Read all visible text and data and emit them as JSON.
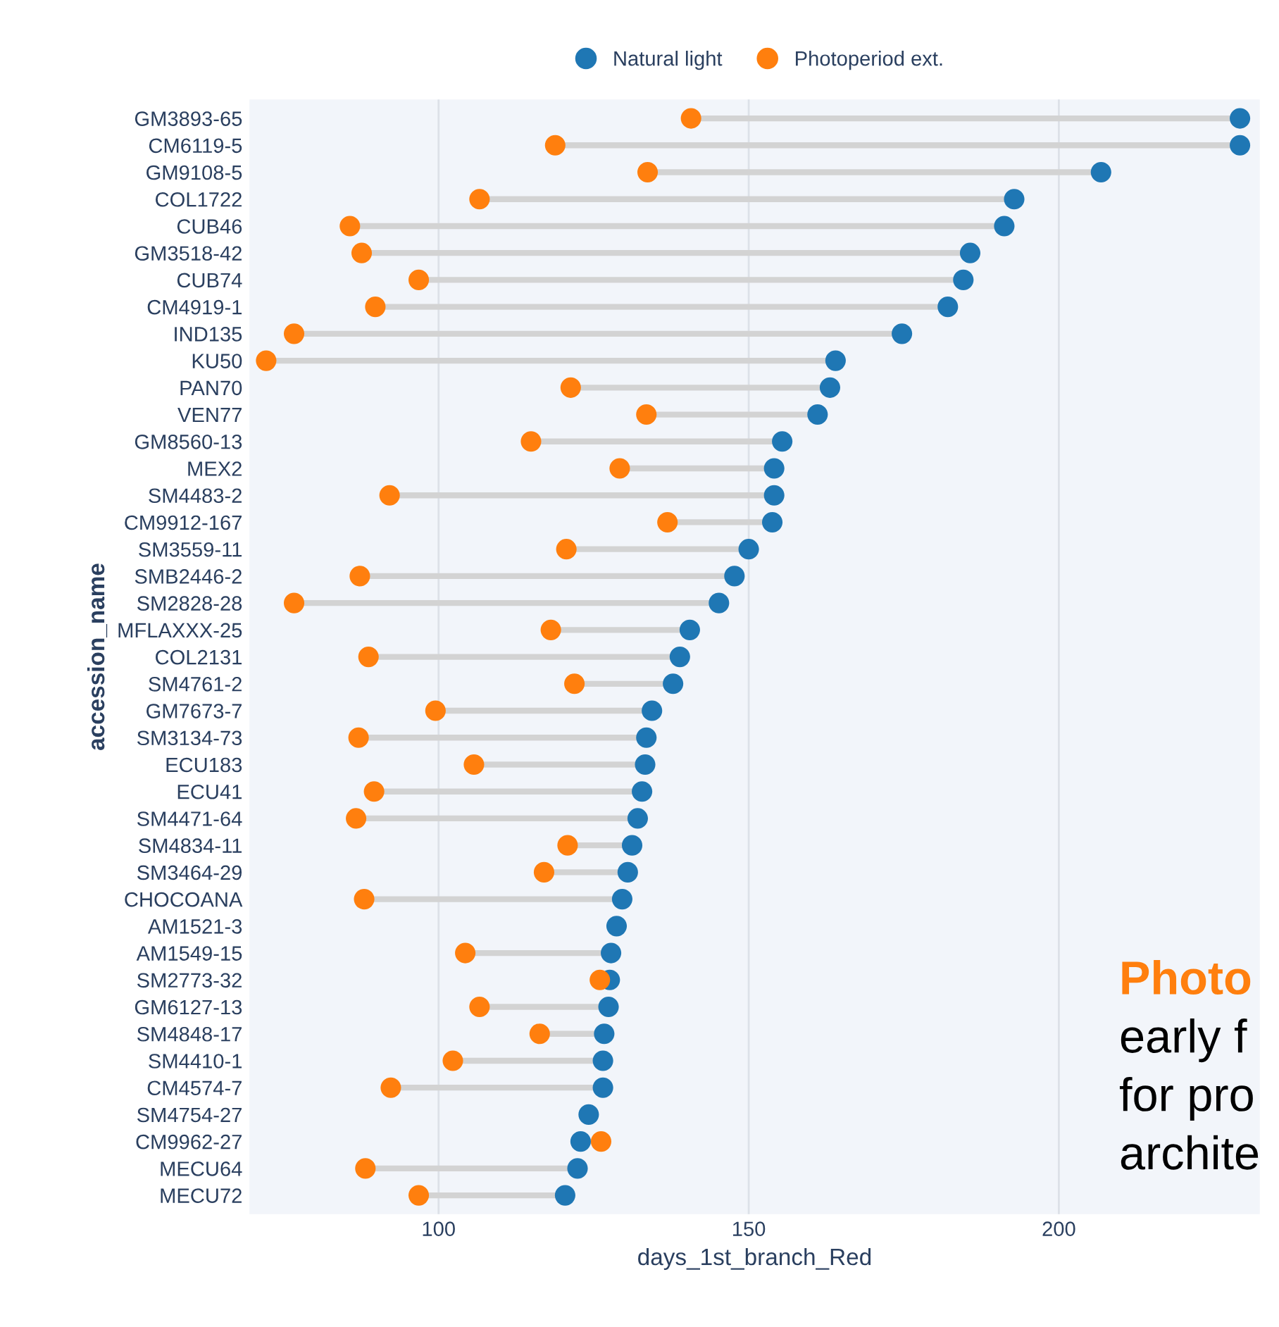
{
  "chart_data": {
    "type": "scatter",
    "orientation": "horizontal",
    "xlabel": "days_1st_branch_Red",
    "ylabel": "accession_name",
    "categories": [
      "GM3893-65",
      "CM6119-5",
      "GM9108-5",
      "COL1722",
      "CUB46",
      "GM3518-42",
      "CUB74",
      "CM4919-1",
      "IND135",
      "KU50",
      "PAN70",
      "VEN77",
      "GM8560-13",
      "MEX2",
      "SM4483-2",
      "CM9912-167",
      "SM3559-11",
      "SMB2446-2",
      "SM2828-28",
      "MFLAXXX-25",
      "COL2131",
      "SM4761-2",
      "GM7673-7",
      "SM3134-73",
      "ECU183",
      "ECU41",
      "SM4471-64",
      "SM4834-11",
      "SM3464-29",
      "CHOCOANA",
      "AM1521-3",
      "AM1549-15",
      "SM2773-32",
      "GM6127-13",
      "SM4848-17",
      "SM4410-1",
      "CM4574-7",
      "SM4754-27",
      "CM9962-27",
      "MECU64",
      "MECU72"
    ],
    "series": [
      {
        "name": "Natural light",
        "color": "#1f77b4",
        "values": [
          229.2,
          229.2,
          206.8,
          192.8,
          191.2,
          185.7,
          184.6,
          182.1,
          174.7,
          164.0,
          163.1,
          161.1,
          155.4,
          154.1,
          154.1,
          153.8,
          150.0,
          147.7,
          145.2,
          140.5,
          138.9,
          137.8,
          134.4,
          133.5,
          133.3,
          132.8,
          132.1,
          131.2,
          130.5,
          129.6,
          128.7,
          127.8,
          127.6,
          127.4,
          126.7,
          126.5,
          126.5,
          124.2,
          122.9,
          122.4,
          120.4
        ]
      },
      {
        "name": "Photoperiod ext.",
        "color": "#ff7f0e",
        "values": [
          140.7,
          118.8,
          133.7,
          106.6,
          85.7,
          87.6,
          96.8,
          89.8,
          76.7,
          72.2,
          121.3,
          133.5,
          114.9,
          129.2,
          92.1,
          136.9,
          120.6,
          87.3,
          76.7,
          118.1,
          88.7,
          121.9,
          99.5,
          87.1,
          105.7,
          89.6,
          86.7,
          120.8,
          117.0,
          88.0,
          null,
          104.3,
          126.0,
          106.6,
          116.3,
          102.3,
          92.3,
          null,
          126.2,
          88.2,
          96.8
        ]
      }
    ],
    "xlim": [
      69.5,
      232.4
    ],
    "xticks": [
      100,
      150,
      200
    ],
    "grid": "x",
    "legend": "top",
    "marker": "circle",
    "annotations": [
      "Photo",
      "early f",
      "for pro",
      "archite"
    ]
  }
}
